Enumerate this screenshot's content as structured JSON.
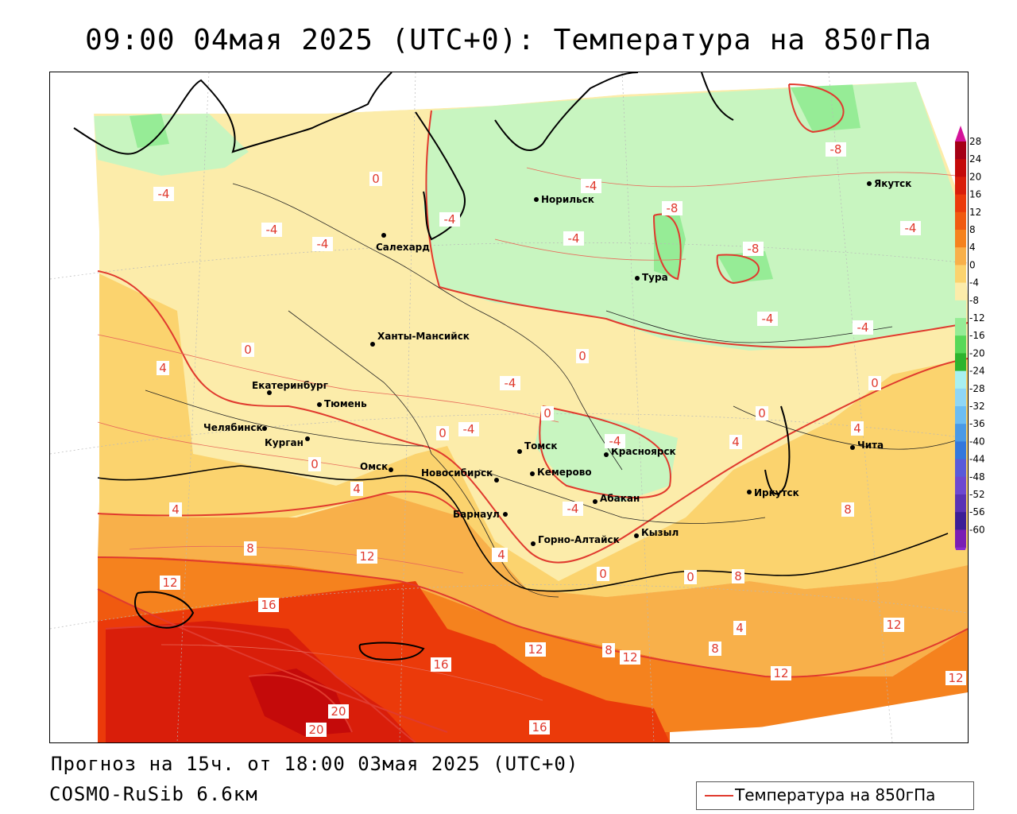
{
  "title": "09:00 04мая 2025 (UTC+0): Температура на 850гПа",
  "forecast": "Прогноз на 15ч. от 18:00 03мая 2025 (UTC+0)",
  "model": "COSMO-RuSib 6.6км",
  "legend": {
    "label": "Температура на 850гПа",
    "line_color": "#e03a2e"
  },
  "colorbar": {
    "ticks": [
      "28",
      "24",
      "20",
      "16",
      "12",
      "8",
      "4",
      "0",
      "-4",
      "-8",
      "-12",
      "-16",
      "-20",
      "-24",
      "-28",
      "-32",
      "-36",
      "-40",
      "-44",
      "-48",
      "-52",
      "-56",
      "-60"
    ],
    "colors": [
      "#a50015",
      "#c40a0a",
      "#d91e0a",
      "#eb3a0a",
      "#f05a10",
      "#f5821e",
      "#f8b04a",
      "#fbd36e",
      "#fcecaa",
      "#c8f5c0",
      "#96ec96",
      "#58d858",
      "#2db42d",
      "#a8f0f0",
      "#8fd6f5",
      "#6cbdf3",
      "#4a9ae6",
      "#3478dc",
      "#5a5ad8",
      "#6e48d0",
      "#5a32b4",
      "#3c1e96",
      "#7a1eb4"
    ]
  },
  "cities": [
    {
      "name": "Норильск"
    },
    {
      "name": "Якутск"
    },
    {
      "name": "Салехард"
    },
    {
      "name": "Тура"
    },
    {
      "name": "Ханты-Мансийск"
    },
    {
      "name": "Екатеринбург"
    },
    {
      "name": "Тюмень"
    },
    {
      "name": "Челябинск"
    },
    {
      "name": "Курган"
    },
    {
      "name": "Омск"
    },
    {
      "name": "Новосибирск"
    },
    {
      "name": "Томск"
    },
    {
      "name": "Красноярск"
    },
    {
      "name": "Кемерово"
    },
    {
      "name": "Абакан"
    },
    {
      "name": "Барнаул"
    },
    {
      "name": "Горно-Алтайск"
    },
    {
      "name": "Кызыл"
    },
    {
      "name": "Иркутск"
    },
    {
      "name": "Чита"
    }
  ],
  "isotherm_labels": [
    "-4",
    "-4",
    "-4",
    "0",
    "-4",
    "-4",
    "-4",
    "-4",
    "-8",
    "-8",
    "-8",
    "-4",
    "-4",
    "-4",
    "0",
    "0",
    "-4",
    "0",
    "-4",
    "0",
    "0",
    "-4",
    "4",
    "4",
    "4",
    "4",
    "0",
    "0",
    "4",
    "4",
    "8",
    "8",
    "12",
    "12",
    "16",
    "12",
    "16",
    "12",
    "8",
    "12",
    "8",
    "12",
    "12",
    "20",
    "20",
    "16",
    "4",
    "0",
    "0",
    "8",
    "4"
  ]
}
